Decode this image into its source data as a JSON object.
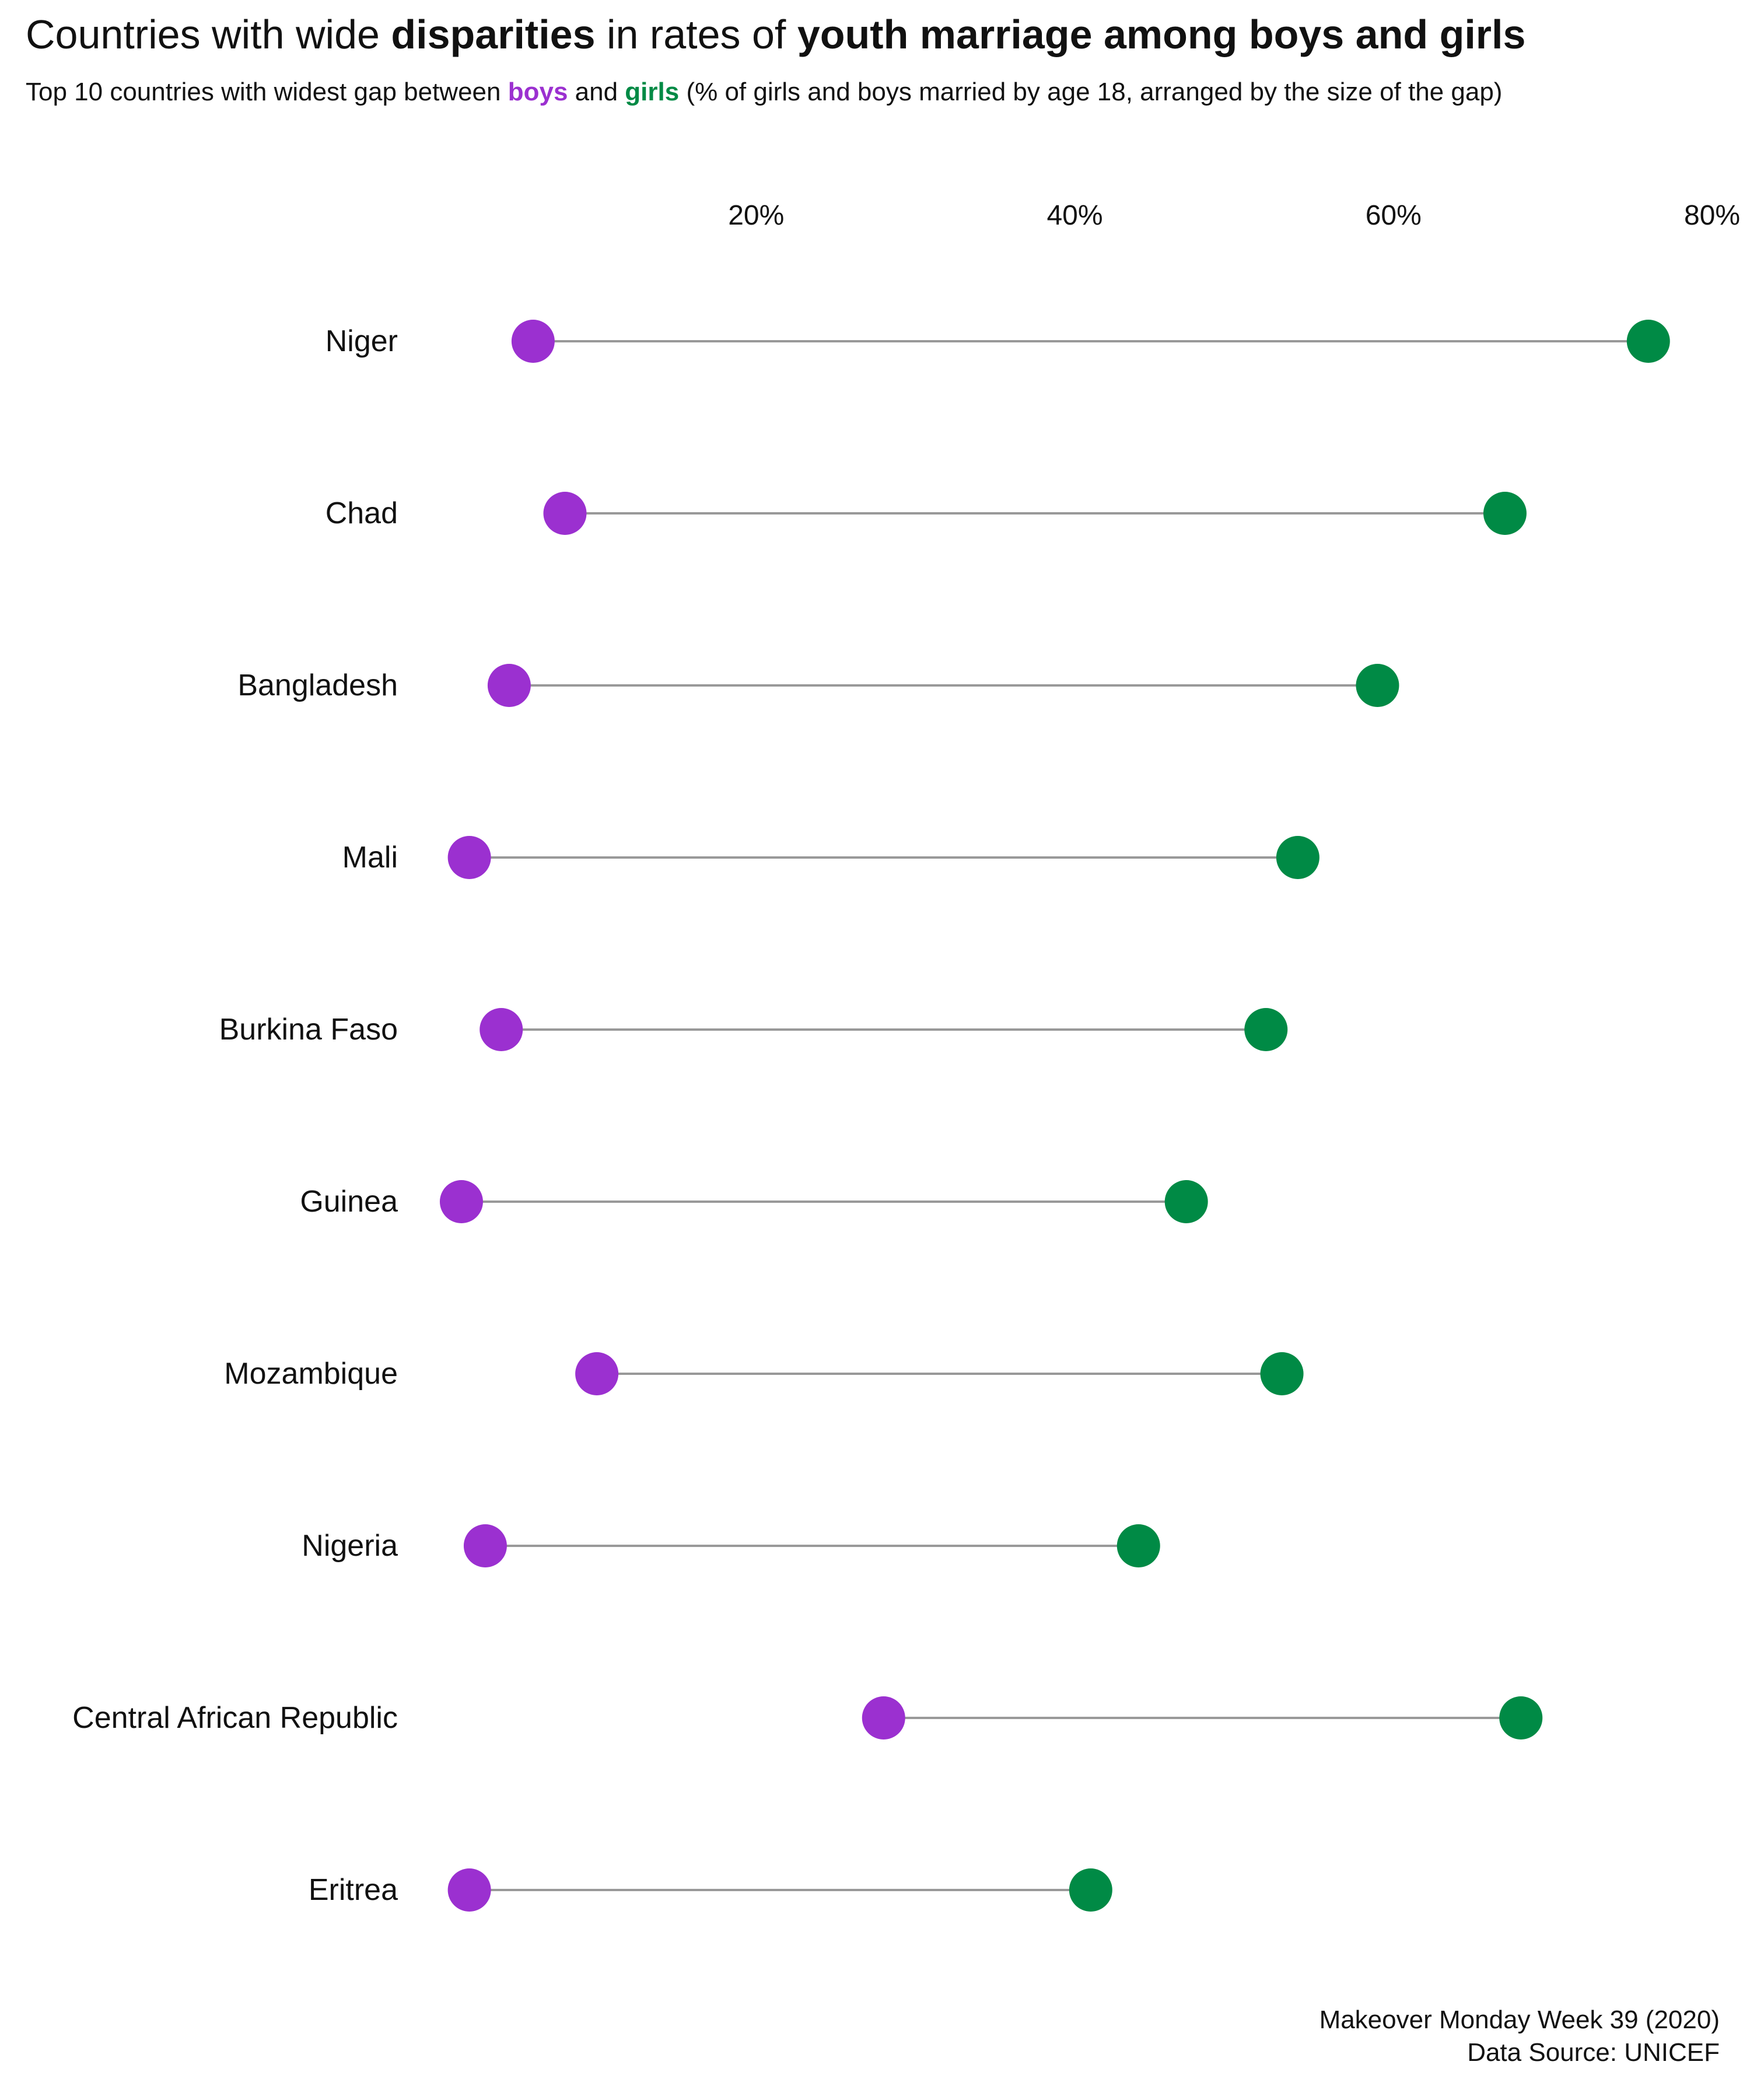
{
  "title": {
    "part1": "Countries with wide ",
    "part2": "disparities",
    "part3": " in rates of ",
    "part4": "youth marriage among boys and girls"
  },
  "subtitle": {
    "part1": "Top 10 countries with widest gap between ",
    "boys": "boys",
    "part2": " and ",
    "girls": "girls",
    "part3": " (% of girls and boys married by age 18, arranged by the size of the gap)"
  },
  "colors": {
    "boys": "#9b30d0",
    "girls": "#008a45",
    "connector": "#999999"
  },
  "caption": {
    "line1": "Makeover Monday Week 39 (2020)",
    "line2": "Data Source: UNICEF"
  },
  "chart_data": {
    "type": "dumbbell",
    "categories": [
      "Niger",
      "Chad",
      "Bangladesh",
      "Mali",
      "Burkina Faso",
      "Guinea",
      "Mozambique",
      "Nigeria",
      "Central African Republic",
      "Eritrea"
    ],
    "series": [
      {
        "name": "boys",
        "values": [
          6,
          8,
          4.5,
          2,
          4,
          1.5,
          10,
          3,
          28,
          2
        ]
      },
      {
        "name": "girls",
        "values": [
          76,
          67,
          59,
          54,
          52,
          47,
          53,
          44,
          68,
          41
        ]
      }
    ],
    "x_ticks": [
      20,
      40,
      60,
      80
    ],
    "x_tick_labels": [
      "20%",
      "40%",
      "60%",
      "80%"
    ],
    "xlim": [
      0,
      80
    ],
    "axis_position": "top",
    "grid": false,
    "legend": "none"
  }
}
